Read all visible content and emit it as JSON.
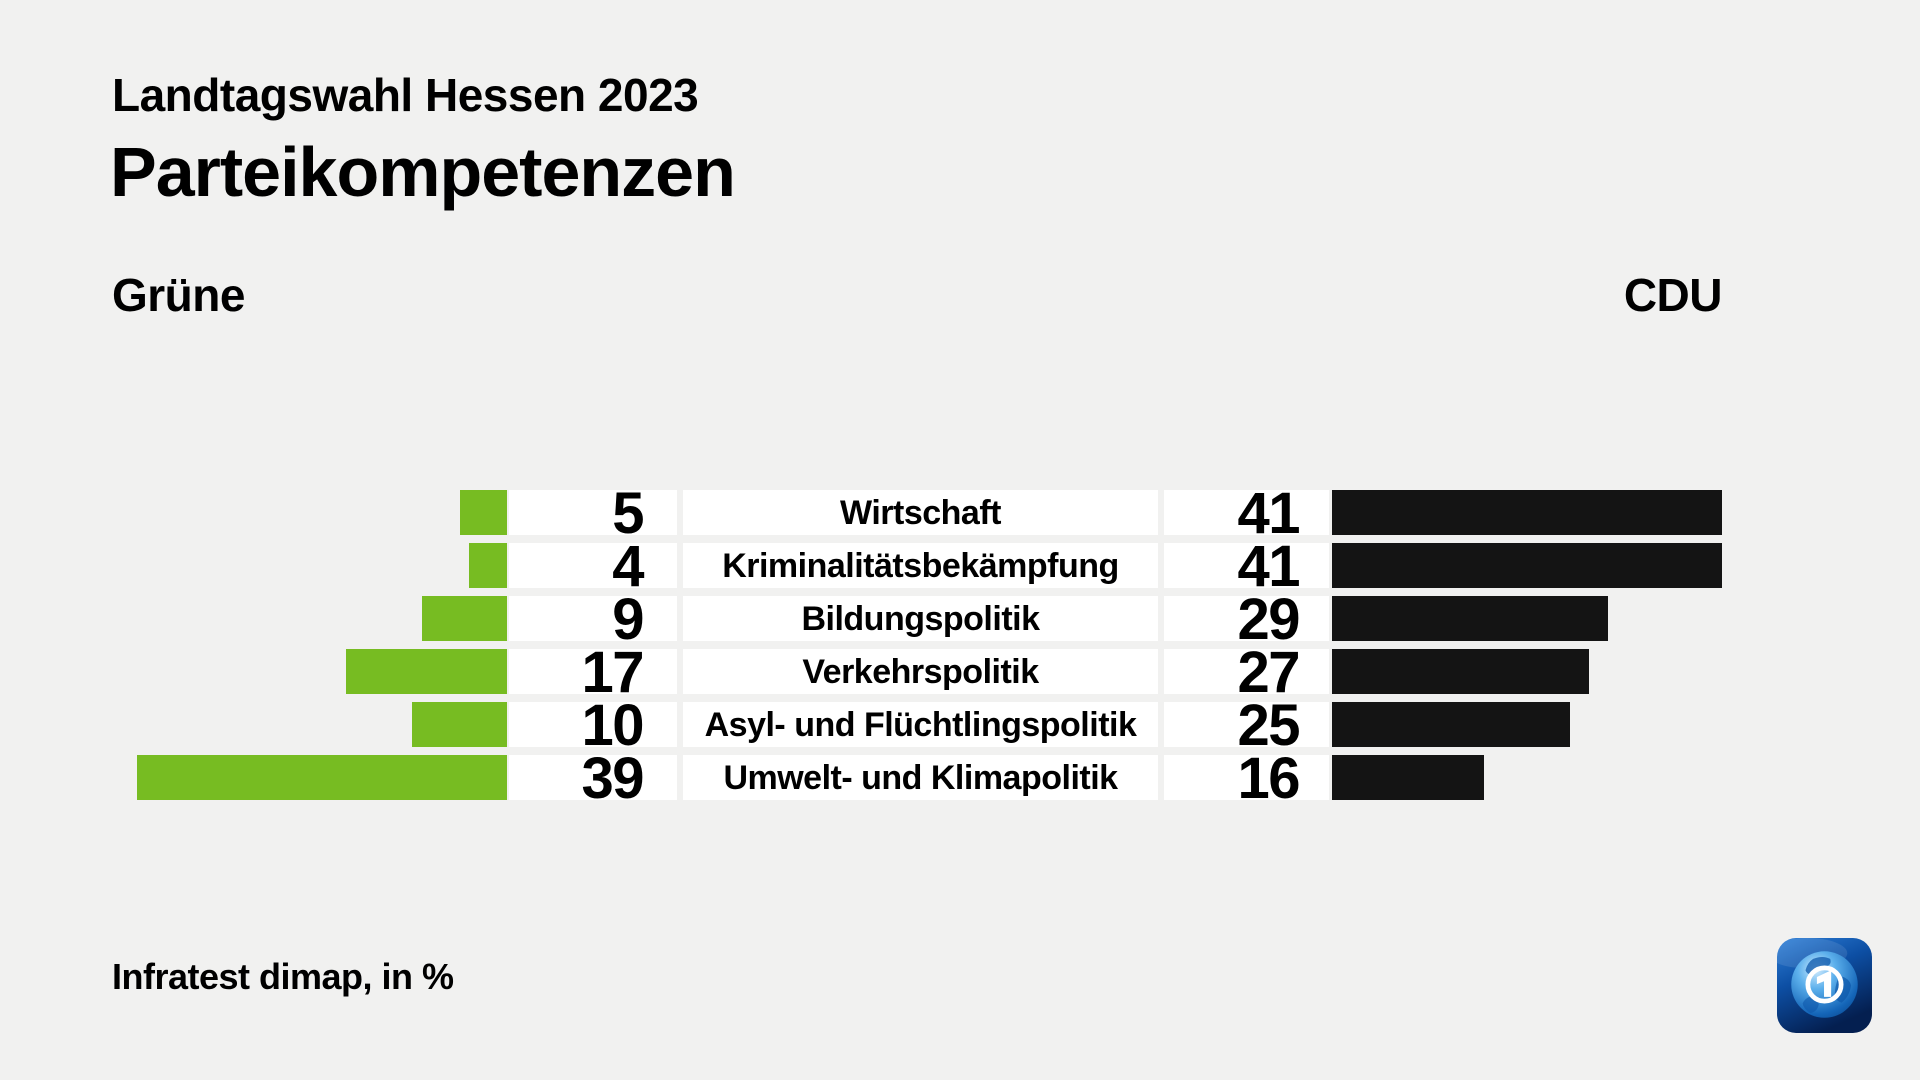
{
  "header": {
    "subtitle": "Landtagswahl Hessen 2023",
    "title": "Parteikompetenzen"
  },
  "parties": {
    "left_label": "Grüne",
    "right_label": "CDU"
  },
  "source_note": "Infratest dimap, in %",
  "icons": {
    "brand": "ard-globe-icon"
  },
  "colors": {
    "gruene_bar": "#77bc22",
    "cdu_bar": "#141414",
    "background": "#f1f1f0",
    "row_background": "#ffffff",
    "text": "#000000"
  },
  "chart_data": {
    "type": "bar",
    "orientation": "diverging-horizontal",
    "title": "Parteikompetenzen",
    "subtitle": "Landtagswahl Hessen 2023",
    "unit": "%",
    "source": "Infratest dimap",
    "value_range": [
      0,
      41
    ],
    "categories": [
      "Wirtschaft",
      "Kriminalitätsbekämpfung",
      "Bildungspolitik",
      "Verkehrspolitik",
      "Asyl- und Flüchtlingspolitik",
      "Umwelt- und Klimapolitik"
    ],
    "series": [
      {
        "name": "Grüne",
        "color": "#77bc22",
        "side": "left",
        "values": [
          5,
          4,
          9,
          17,
          10,
          39
        ]
      },
      {
        "name": "CDU",
        "color": "#141414",
        "side": "right",
        "values": [
          41,
          41,
          29,
          27,
          25,
          16
        ]
      }
    ]
  }
}
